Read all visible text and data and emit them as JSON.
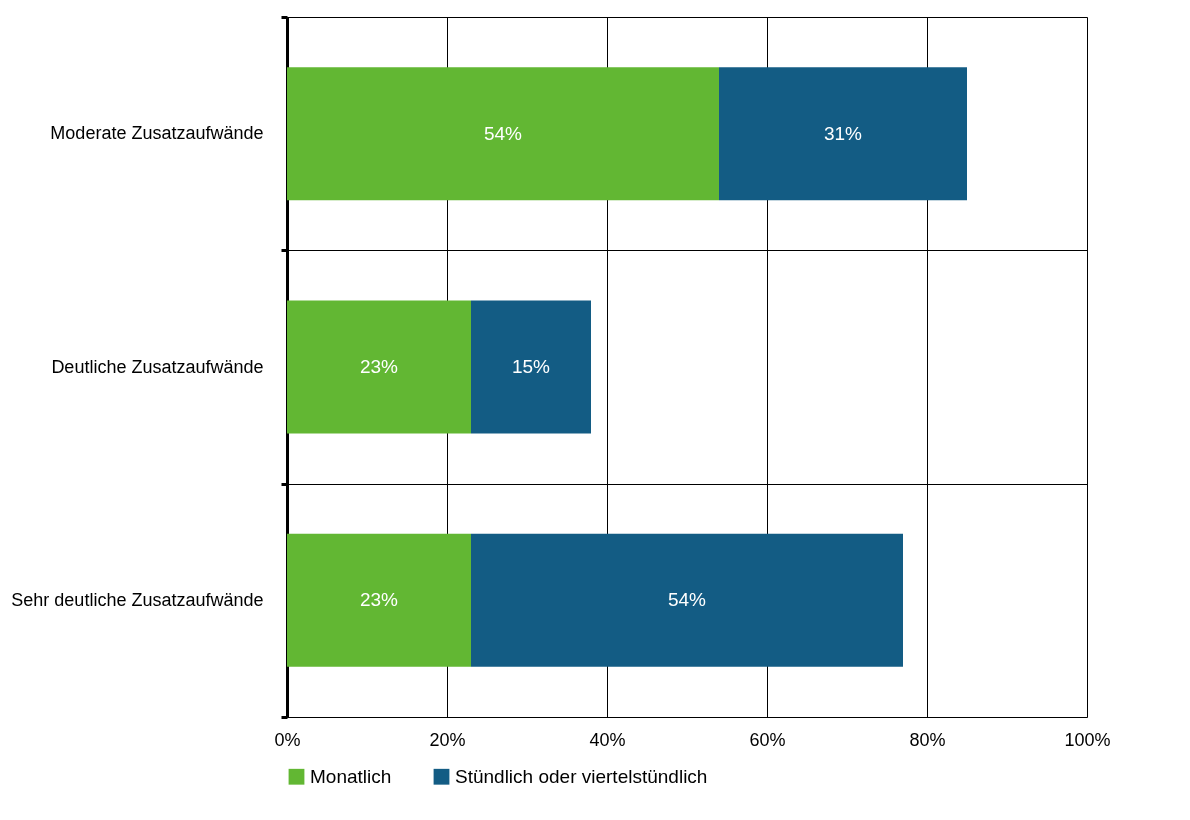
{
  "chart_data": {
    "type": "bar",
    "orientation": "horizontal",
    "stacked": true,
    "categories": [
      "Moderate Zusatzaufwände",
      "Deutliche Zusatzaufwände",
      "Sehr deutliche Zusatzaufwände"
    ],
    "series": [
      {
        "name": "Monatlich",
        "color": "#62b733",
        "values": [
          54,
          23,
          23
        ],
        "value_labels": [
          "54%",
          "23%",
          "23%"
        ]
      },
      {
        "name": "Stündlich oder viertelstündlich",
        "color": "#135c84",
        "values": [
          31,
          15,
          54
        ],
        "value_labels": [
          "31%",
          "15%",
          "54%"
        ]
      }
    ],
    "xlim": [
      0,
      100
    ],
    "xticks": [
      {
        "value": 0,
        "label": "0%"
      },
      {
        "value": 20,
        "label": "20%"
      },
      {
        "value": 40,
        "label": "40%"
      },
      {
        "value": 60,
        "label": "60%"
      },
      {
        "value": 80,
        "label": "80%"
      },
      {
        "value": 100,
        "label": "100%"
      }
    ],
    "grid": true,
    "legend": "bottom"
  }
}
